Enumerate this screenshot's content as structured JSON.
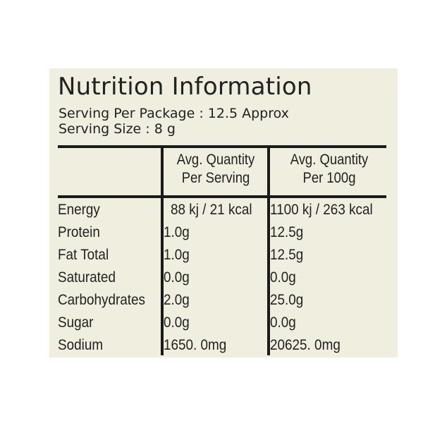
{
  "label": {
    "title": "Nutrition Information",
    "serving_per_package": "Serving Per Package : 12.5 Approx",
    "serving_size": "Serving Size : 8 g",
    "columns": [
      {
        "line1": "Avg. Quantity",
        "line2": "Per Serving"
      },
      {
        "line1": "Avg. Quantity",
        "line2": "Per 100g"
      }
    ],
    "rows": [
      {
        "nutrient": "Energy",
        "per_serving": "88 kj / 21 kcal",
        "per_100g": "1100 kj / 263 kcal"
      },
      {
        "nutrient": "Protein",
        "per_serving": "1.0g",
        "per_100g": "12.5g"
      },
      {
        "nutrient": "Fat Total",
        "per_serving": "1.0g",
        "per_100g": "12.5g"
      },
      {
        "nutrient": "Saturated",
        "per_serving": "0.0g",
        "per_100g": "0.0g"
      },
      {
        "nutrient": "Carbohydrates",
        "per_serving": "2.0g",
        "per_100g": "25.0g"
      },
      {
        "nutrient": "Sugar",
        "per_serving": "0.0g",
        "per_100g": "0.0g"
      },
      {
        "nutrient": "Sodium",
        "per_serving": "1650. 0mg",
        "per_100g": "20625. 0mg"
      }
    ]
  }
}
